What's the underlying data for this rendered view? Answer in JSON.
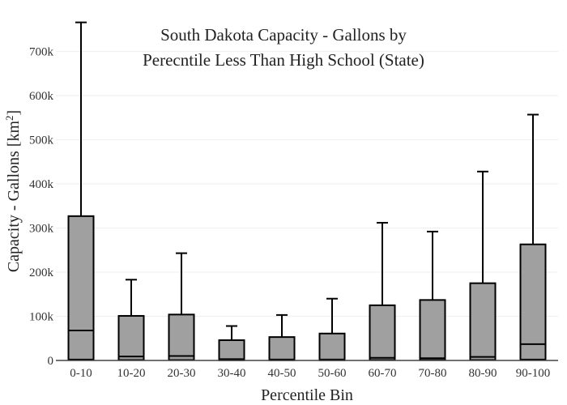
{
  "chart_data": {
    "type": "box",
    "title_lines": [
      "South Dakota Capacity - Gallons by",
      "Perecntile Less Than High School (State)"
    ],
    "xlabel": "Percentile Bin",
    "ylabel_main": "Capacity - Gallons  [km",
    "ylabel_sup": "2",
    "ylabel_close": "]",
    "ylim": [
      0,
      780000
    ],
    "yticks": [
      0,
      100000,
      200000,
      300000,
      400000,
      500000,
      600000,
      700000
    ],
    "ytick_labels": [
      "0",
      "100k",
      "200k",
      "300k",
      "400k",
      "500k",
      "600k",
      "700k"
    ],
    "grid": true,
    "colors": {
      "box_fill": "#a0a0a0",
      "box_line": "#000000",
      "grid": "#eeeeee",
      "axis": "#444444"
    },
    "categories": [
      "0-10",
      "10-20",
      "20-30",
      "30-40",
      "40-50",
      "50-60",
      "60-70",
      "70-80",
      "80-90",
      "90-100"
    ],
    "boxes": [
      {
        "category": "0-10",
        "lower": 0,
        "q1": 2000,
        "median": 68000,
        "q3": 327000,
        "upper": 766000
      },
      {
        "category": "10-20",
        "lower": 0,
        "q1": 1000,
        "median": 9000,
        "q3": 101000,
        "upper": 183000
      },
      {
        "category": "20-30",
        "lower": 0,
        "q1": 1000,
        "median": 10000,
        "q3": 104000,
        "upper": 243000
      },
      {
        "category": "30-40",
        "lower": 0,
        "q1": 500,
        "median": 3000,
        "q3": 46000,
        "upper": 78000
      },
      {
        "category": "40-50",
        "lower": 0,
        "q1": 500,
        "median": 2000,
        "q3": 53000,
        "upper": 103000
      },
      {
        "category": "50-60",
        "lower": 0,
        "q1": 500,
        "median": 2000,
        "q3": 61000,
        "upper": 140000
      },
      {
        "category": "60-70",
        "lower": 0,
        "q1": 1000,
        "median": 6000,
        "q3": 125000,
        "upper": 312000
      },
      {
        "category": "70-80",
        "lower": 0,
        "q1": 1000,
        "median": 5000,
        "q3": 137000,
        "upper": 292000
      },
      {
        "category": "80-90",
        "lower": 0,
        "q1": 1000,
        "median": 8000,
        "q3": 175000,
        "upper": 428000
      },
      {
        "category": "90-100",
        "lower": 0,
        "q1": 2000,
        "median": 37000,
        "q3": 263000,
        "upper": 557000
      }
    ]
  }
}
